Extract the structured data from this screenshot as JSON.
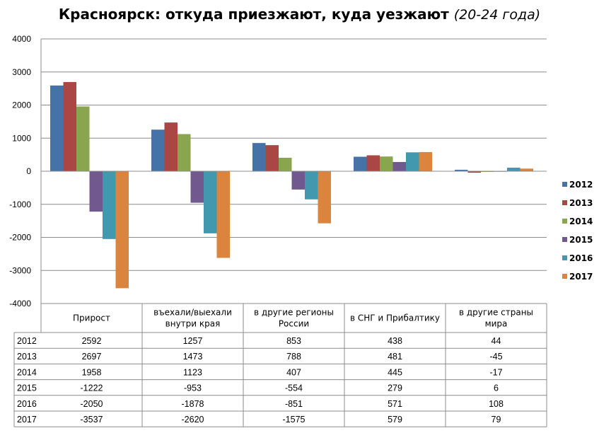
{
  "title": "Красноярск: откуда приезжают, куда уезжают",
  "subtitle": "(20-24 года)",
  "chart_data": {
    "type": "bar",
    "title": "Красноярск: откуда приезжают, куда уезжают (20-24 года)",
    "categories": [
      "Прирост",
      "въехали/выехали внутри края",
      "в другие регионы России",
      "в СНГ и Прибалтику",
      "в другие страны мира"
    ],
    "category_lines": [
      [
        "Прирост"
      ],
      [
        "въехали/выехали",
        "внутри края"
      ],
      [
        "в другие регионы",
        "России"
      ],
      [
        "в СНГ и Прибалтику"
      ],
      [
        "в другие страны",
        "мира"
      ]
    ],
    "ylim": [
      -4000,
      4000
    ],
    "yticks": [
      4000,
      3000,
      2000,
      1000,
      0,
      -1000,
      -2000,
      -3000,
      -4000
    ],
    "ytick_labels": [
      "4000",
      "3000",
      "2000",
      "1000",
      "0",
      "-1000",
      "-2000",
      "-3000",
      "-4000"
    ],
    "grid": true,
    "legend_position": "right",
    "series": [
      {
        "name": "2012",
        "color": "#4572A7",
        "values": [
          2592,
          1257,
          853,
          438,
          44
        ]
      },
      {
        "name": "2013",
        "color": "#AA4643",
        "values": [
          2697,
          1473,
          788,
          481,
          -45
        ]
      },
      {
        "name": "2014",
        "color": "#89A54E",
        "values": [
          1958,
          1123,
          407,
          445,
          -17
        ]
      },
      {
        "name": "2015",
        "color": "#71588F",
        "values": [
          -1222,
          -953,
          -554,
          279,
          6
        ]
      },
      {
        "name": "2016",
        "color": "#4198AF",
        "values": [
          -2050,
          -1878,
          -851,
          571,
          108
        ]
      },
      {
        "name": "2017",
        "color": "#DB843D",
        "values": [
          -3537,
          -2620,
          -1575,
          579,
          79
        ]
      }
    ]
  }
}
